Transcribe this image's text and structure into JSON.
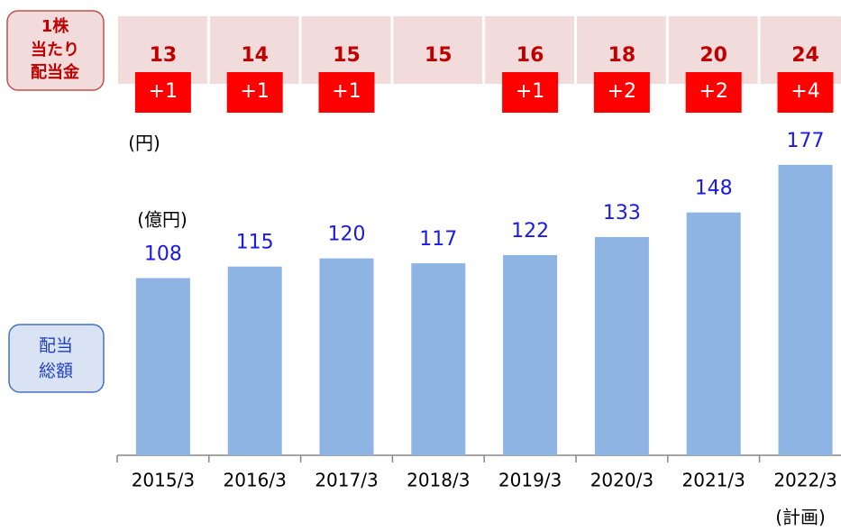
{
  "chart_data": {
    "type": "bar",
    "dividend_per_share_label": [
      "1株",
      "当たり",
      "配当金"
    ],
    "dividend_per_share_unit": "(円)",
    "dividends_per_share": [
      13,
      14,
      15,
      15,
      16,
      18,
      20,
      24
    ],
    "dividend_increase_labels": [
      "+1",
      "+1",
      "+1",
      null,
      "+1",
      "+2",
      "+2",
      "+4"
    ],
    "total_label": [
      "配当",
      "総額"
    ],
    "unit": "(億円)",
    "categories": [
      "2015/3",
      "2016/3",
      "2017/3",
      "2018/3",
      "2019/3",
      "2020/3",
      "2021/3",
      "2022/3"
    ],
    "values": [
      108,
      115,
      120,
      117,
      122,
      133,
      148,
      177
    ],
    "note": "(計画)",
    "color": "#8eb4e3",
    "label_color": "#1a1ae6",
    "ylim": [
      0,
      200
    ]
  }
}
